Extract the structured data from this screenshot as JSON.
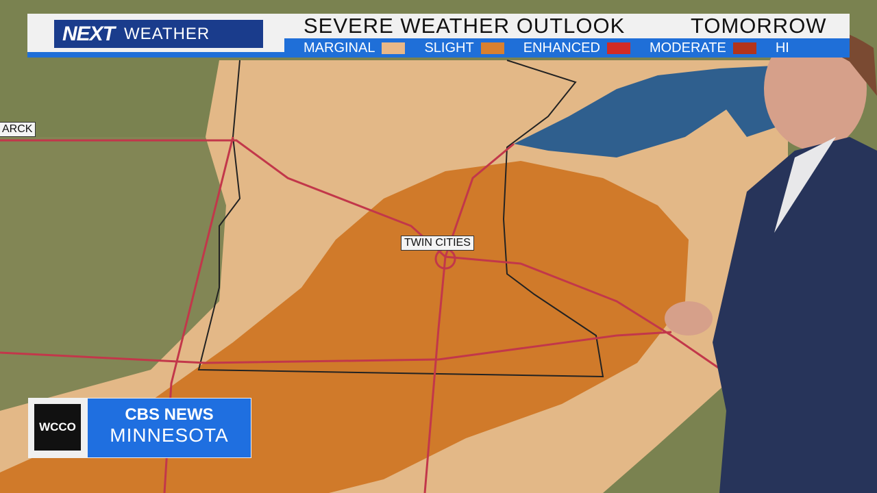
{
  "header": {
    "logo_next": "NEXT",
    "logo_weather": "WEATHER",
    "title": "SEVERE WEATHER OUTLOOK",
    "timeframe": "TOMORROW"
  },
  "legend": [
    {
      "label": "MARGINAL",
      "color": "#e9b887"
    },
    {
      "label": "SLIGHT",
      "color": "#d9802e"
    },
    {
      "label": "ENHANCED",
      "color": "#d22b25"
    },
    {
      "label": "MODERATE",
      "color": "#b3341a"
    },
    {
      "label": "HI",
      "color": "#b3341a"
    }
  ],
  "map": {
    "labels": {
      "twin_cities": "TWIN CITIES",
      "bismarck": "ARCK"
    },
    "colors": {
      "marginal": "#e3b887",
      "slight": "#d07a2a",
      "lake": "#2f5f8e",
      "roads": "#c2374a"
    }
  },
  "bug": {
    "station": "WCCO",
    "network": "CBS NEWS",
    "region": "MINNESOTA"
  }
}
